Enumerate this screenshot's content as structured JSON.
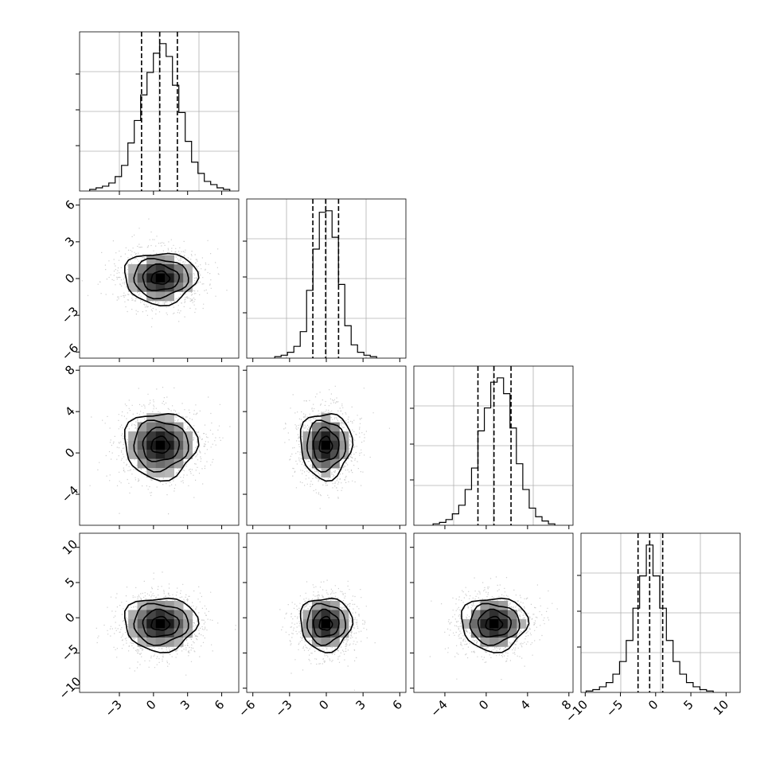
{
  "chart_data": [
    {
      "type": "histogram",
      "variable_index": 0,
      "xlim": [
        -6.5,
        7.5
      ],
      "xticks": [
        -3,
        0,
        3,
        6
      ],
      "bin_width": 0.56,
      "counts": [
        1,
        2,
        3,
        5,
        9,
        16,
        30,
        44,
        60,
        74,
        86,
        92,
        84,
        66,
        49,
        31,
        18,
        11,
        6,
        4,
        2,
        1
      ],
      "quantiles": [
        -1.05,
        0.55,
        2.1
      ]
    },
    {
      "type": "histogram",
      "variable_index": 1,
      "xlim": [
        -6.5,
        6.5
      ],
      "xticks": [
        -6,
        -3,
        0,
        3,
        6
      ],
      "bin_width": 0.52,
      "counts": [
        1,
        2,
        4,
        8,
        18,
        46,
        74,
        99,
        100,
        82,
        50,
        22,
        9,
        4,
        2,
        1
      ],
      "quantiles": [
        -1.1,
        -0.05,
        1.0
      ]
    },
    {
      "type": "histogram",
      "variable_index": 2,
      "xlim": [
        -7,
        8.4
      ],
      "xticks": [
        -4,
        0,
        4,
        8
      ],
      "bin_width": 0.62,
      "counts": [
        1,
        2,
        4,
        8,
        14,
        25,
        40,
        66,
        82,
        100,
        103,
        92,
        68,
        43,
        25,
        12,
        6,
        3,
        1
      ],
      "quantiles": [
        -0.8,
        0.75,
        2.4
      ]
    },
    {
      "type": "histogram",
      "variable_index": 3,
      "xlim": [
        -10.6,
        12
      ],
      "xticks": [
        -10,
        -5,
        0,
        5,
        10
      ],
      "bin_width": 0.95,
      "counts": [
        1,
        2,
        4,
        7,
        13,
        22,
        37,
        60,
        83,
        105,
        83,
        60,
        37,
        22,
        13,
        7,
        4,
        2,
        1
      ],
      "quantiles": [
        -2.5,
        -0.85,
        1.0
      ]
    },
    {
      "type": "heatmap",
      "pair": [
        0,
        1
      ],
      "xlim": [
        -6.5,
        7.5
      ],
      "ylim": [
        -6.5,
        6.5
      ],
      "center": [
        0.6,
        0.05
      ],
      "sigma": [
        1.6,
        1.05
      ],
      "yticks": [
        -6,
        -3,
        0,
        3,
        6
      ]
    },
    {
      "type": "heatmap",
      "pair": [
        0,
        2
      ],
      "xlim": [
        -6.5,
        7.5
      ],
      "ylim": [
        -7,
        8.4
      ],
      "center": [
        0.6,
        0.75
      ],
      "sigma": [
        1.6,
        1.6
      ],
      "yticks": [
        -4,
        0,
        4,
        8
      ]
    },
    {
      "type": "heatmap",
      "pair": [
        1,
        2
      ],
      "xlim": [
        -6.5,
        6.5
      ],
      "ylim": [
        -7,
        8.4
      ],
      "center": [
        -0.05,
        0.75
      ],
      "sigma": [
        1.05,
        1.6
      ],
      "yticks": []
    },
    {
      "type": "heatmap",
      "pair": [
        0,
        3
      ],
      "xlim": [
        -6.5,
        7.5
      ],
      "ylim": [
        -10.6,
        12
      ],
      "center": [
        0.6,
        -0.85
      ],
      "sigma": [
        1.6,
        1.9
      ],
      "yticks": [
        -10,
        -5,
        0,
        5,
        10
      ]
    },
    {
      "type": "heatmap",
      "pair": [
        1,
        3
      ],
      "xlim": [
        -6.5,
        6.5
      ],
      "ylim": [
        -10.6,
        12
      ],
      "center": [
        -0.05,
        -0.85
      ],
      "sigma": [
        1.05,
        1.9
      ],
      "yticks": []
    },
    {
      "type": "heatmap",
      "pair": [
        2,
        3
      ],
      "xlim": [
        -7,
        8.4
      ],
      "ylim": [
        -10.6,
        12
      ],
      "center": [
        0.75,
        -0.85
      ],
      "sigma": [
        1.6,
        1.9
      ],
      "yticks": []
    }
  ],
  "colors": {
    "line": "#000000",
    "grid": "#b0b0b0",
    "scatter": "#c0c0c0"
  }
}
